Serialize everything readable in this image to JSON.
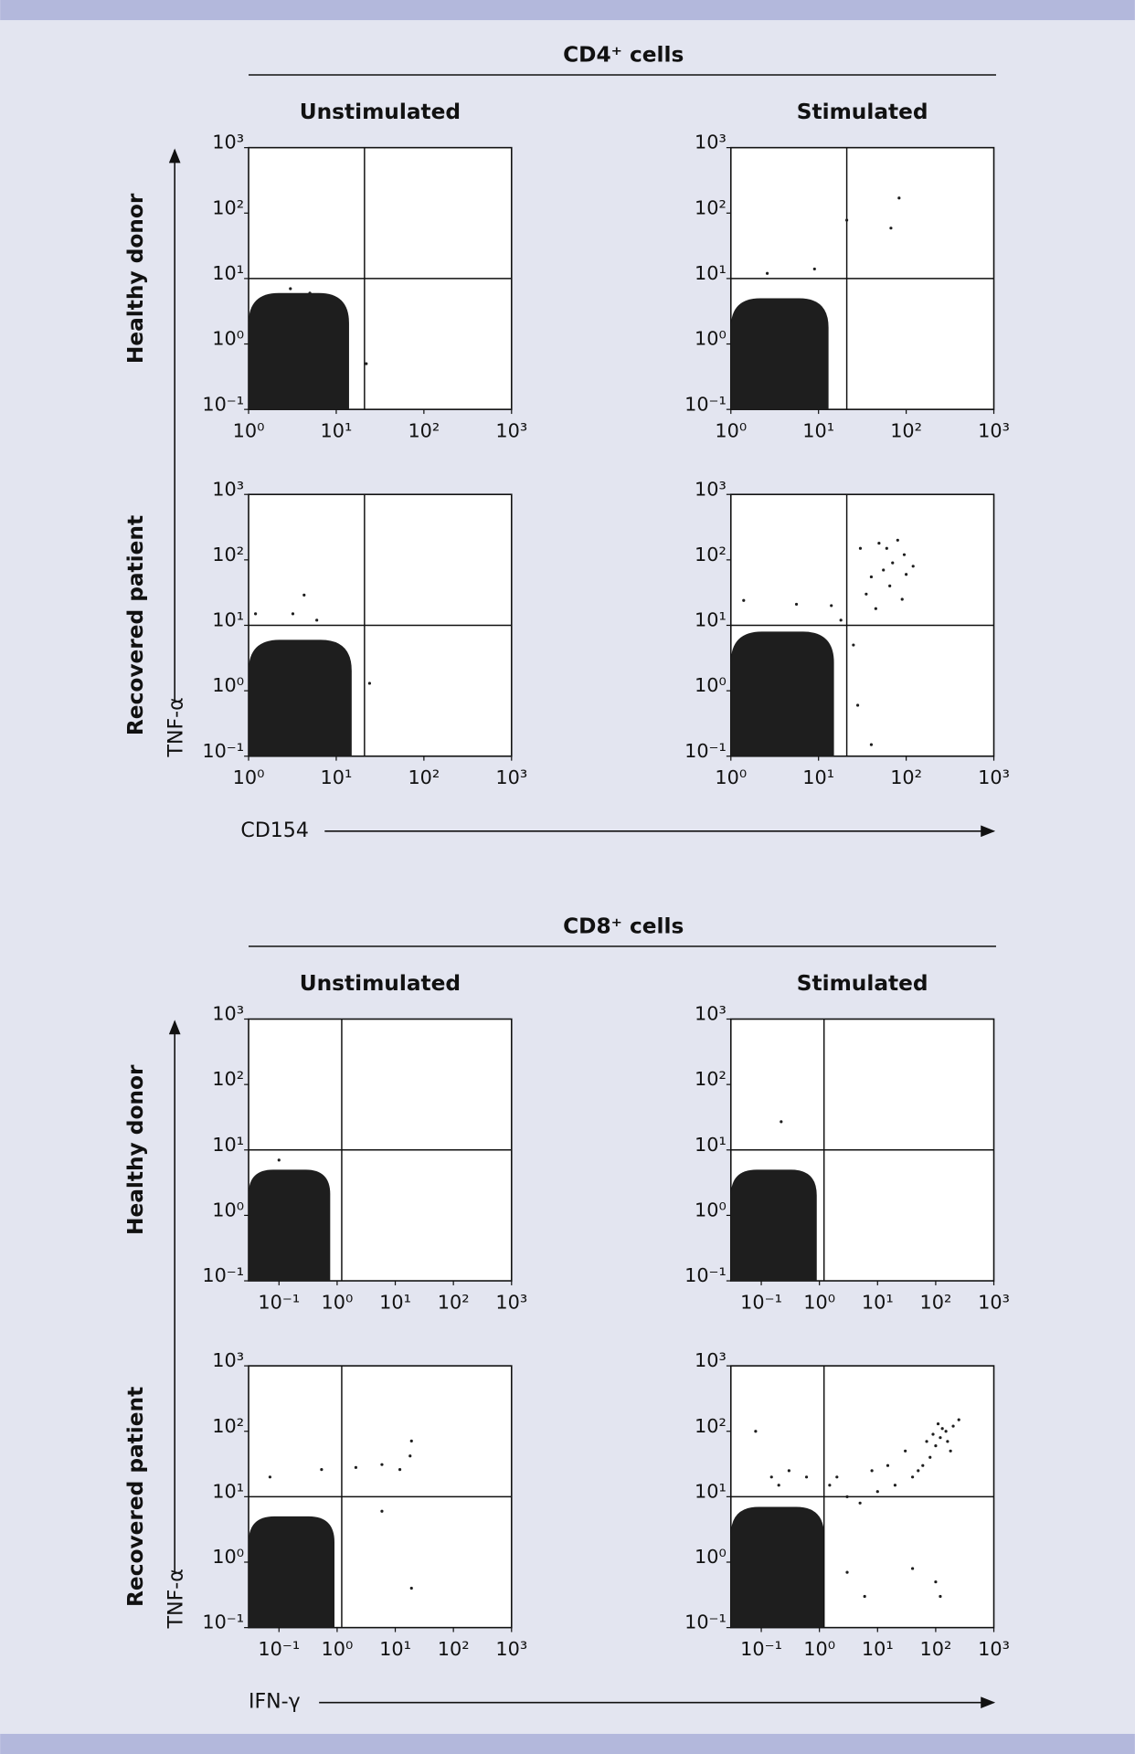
{
  "sections": [
    {
      "title": "CD4⁺ cells",
      "columns": [
        "Unstimulated",
        "Stimulated"
      ],
      "rows": [
        "Healthy donor",
        "Recovered patient"
      ],
      "y_label": "TNF-α",
      "x_label": "CD154"
    },
    {
      "title": "CD8⁺ cells",
      "columns": [
        "Unstimulated",
        "Stimulated"
      ],
      "rows": [
        "Healthy donor",
        "Recovered patient"
      ],
      "y_label": "TNF-α",
      "x_label": "IFN-γ"
    }
  ],
  "chart_data": [
    {
      "type": "scatter",
      "xscale": "log",
      "yscale": "log",
      "color": "#1e1e1e",
      "xlim": [
        1,
        1000
      ],
      "ylim": [
        0.1,
        1000
      ],
      "xticks": [
        {
          "value": 1,
          "label": "10⁰"
        },
        {
          "value": 10,
          "label": "10¹"
        },
        {
          "value": 100,
          "label": "10²"
        },
        {
          "value": 1000,
          "label": "10³"
        }
      ],
      "yticks": [
        {
          "value": 0.1,
          "label": "10⁻¹"
        },
        {
          "value": 1,
          "label": "10⁰"
        },
        {
          "value": 10,
          "label": "10¹"
        },
        {
          "value": 100,
          "label": "10²"
        },
        {
          "value": 1000,
          "label": "10³"
        }
      ],
      "gates": {
        "x": 21,
        "y": 10
      },
      "dense_region": {
        "x": [
          1,
          14
        ],
        "y": [
          0.1,
          6
        ]
      },
      "x": [
        22,
        3,
        5
      ],
      "values": [
        0.5,
        7,
        6
      ]
    },
    {
      "type": "scatter",
      "xscale": "log",
      "yscale": "log",
      "color": "#1e1e1e",
      "xlim": [
        1,
        1000
      ],
      "ylim": [
        0.1,
        1000
      ],
      "xticks": [
        {
          "value": 1,
          "label": "10⁰"
        },
        {
          "value": 10,
          "label": "10¹"
        },
        {
          "value": 100,
          "label": "10²"
        },
        {
          "value": 1000,
          "label": "10³"
        }
      ],
      "yticks": [
        {
          "value": 0.1,
          "label": "10⁻¹"
        },
        {
          "value": 1,
          "label": "10⁰"
        },
        {
          "value": 10,
          "label": "10¹"
        },
        {
          "value": 100,
          "label": "10²"
        },
        {
          "value": 1000,
          "label": "10³"
        }
      ],
      "gates": {
        "x": 21,
        "y": 10
      },
      "dense_region": {
        "x": [
          1,
          13
        ],
        "y": [
          0.1,
          5
        ]
      },
      "x": [
        21,
        67,
        83,
        9,
        2.6
      ],
      "values": [
        78,
        59,
        170,
        14,
        12
      ]
    },
    {
      "type": "scatter",
      "xscale": "log",
      "yscale": "log",
      "color": "#1e1e1e",
      "xlim": [
        1,
        1000
      ],
      "ylim": [
        0.1,
        1000
      ],
      "xticks": [
        {
          "value": 1,
          "label": "10⁰"
        },
        {
          "value": 10,
          "label": "10¹"
        },
        {
          "value": 100,
          "label": "10²"
        },
        {
          "value": 1000,
          "label": "10³"
        }
      ],
      "yticks": [
        {
          "value": 0.1,
          "label": "10⁻¹"
        },
        {
          "value": 1,
          "label": "10⁰"
        },
        {
          "value": 10,
          "label": "10¹"
        },
        {
          "value": 100,
          "label": "10²"
        },
        {
          "value": 1000,
          "label": "10³"
        }
      ],
      "gates": {
        "x": 21,
        "y": 10
      },
      "dense_region": {
        "x": [
          1,
          15
        ],
        "y": [
          0.1,
          6
        ]
      },
      "x": [
        4.3,
        1.2,
        3.2,
        24,
        6
      ],
      "values": [
        29,
        15,
        15,
        1.3,
        12
      ]
    },
    {
      "type": "scatter",
      "xscale": "log",
      "yscale": "log",
      "color": "#1e1e1e",
      "xlim": [
        1,
        1000
      ],
      "ylim": [
        0.1,
        1000
      ],
      "xticks": [
        {
          "value": 1,
          "label": "10⁰"
        },
        {
          "value": 10,
          "label": "10¹"
        },
        {
          "value": 100,
          "label": "10²"
        },
        {
          "value": 1000,
          "label": "10³"
        }
      ],
      "yticks": [
        {
          "value": 0.1,
          "label": "10⁻¹"
        },
        {
          "value": 1,
          "label": "10⁰"
        },
        {
          "value": 10,
          "label": "10¹"
        },
        {
          "value": 100,
          "label": "10²"
        },
        {
          "value": 1000,
          "label": "10³"
        }
      ],
      "gates": {
        "x": 21,
        "y": 10
      },
      "dense_region": {
        "x": [
          1,
          15
        ],
        "y": [
          0.1,
          8
        ]
      },
      "x": [
        49,
        60,
        80,
        95,
        70,
        55,
        40,
        100,
        120,
        35,
        65,
        90,
        45,
        30,
        25,
        28,
        40,
        18,
        14,
        1.4,
        5.6
      ],
      "values": [
        180,
        150,
        200,
        120,
        90,
        70,
        55,
        60,
        80,
        30,
        40,
        25,
        18,
        150,
        5,
        0.6,
        0.15,
        12,
        20,
        24,
        21
      ]
    },
    {
      "type": "scatter",
      "xscale": "log",
      "yscale": "log",
      "color": "#1e1e1e",
      "xlim": [
        0.03,
        1000
      ],
      "ylim": [
        0.1,
        1000
      ],
      "xticks": [
        {
          "value": 0.1,
          "label": "10⁻¹"
        },
        {
          "value": 1,
          "label": "10⁰"
        },
        {
          "value": 10,
          "label": "10¹"
        },
        {
          "value": 100,
          "label": "10²"
        },
        {
          "value": 1000,
          "label": "10³"
        }
      ],
      "yticks": [
        {
          "value": 0.1,
          "label": "10⁻¹"
        },
        {
          "value": 1,
          "label": "10⁰"
        },
        {
          "value": 10,
          "label": "10¹"
        },
        {
          "value": 100,
          "label": "10²"
        },
        {
          "value": 1000,
          "label": "10³"
        }
      ],
      "gates": {
        "x": 1.2,
        "y": 10
      },
      "dense_region": {
        "x": [
          0.03,
          0.76
        ],
        "y": [
          0.1,
          5
        ]
      },
      "x": [
        0.1
      ],
      "values": [
        7
      ]
    },
    {
      "type": "scatter",
      "xscale": "log",
      "yscale": "log",
      "color": "#1e1e1e",
      "xlim": [
        0.03,
        1000
      ],
      "ylim": [
        0.1,
        1000
      ],
      "xticks": [
        {
          "value": 0.1,
          "label": "10⁻¹"
        },
        {
          "value": 1,
          "label": "10⁰"
        },
        {
          "value": 10,
          "label": "10¹"
        },
        {
          "value": 100,
          "label": "10²"
        },
        {
          "value": 1000,
          "label": "10³"
        }
      ],
      "yticks": [
        {
          "value": 0.1,
          "label": "10⁻¹"
        },
        {
          "value": 1,
          "label": "10⁰"
        },
        {
          "value": 10,
          "label": "10¹"
        },
        {
          "value": 100,
          "label": "10²"
        },
        {
          "value": 1000,
          "label": "10³"
        }
      ],
      "gates": {
        "x": 1.2,
        "y": 10
      },
      "dense_region": {
        "x": [
          0.03,
          0.9
        ],
        "y": [
          0.1,
          5
        ]
      },
      "x": [
        0.22
      ],
      "values": [
        27
      ]
    },
    {
      "type": "scatter",
      "xscale": "log",
      "yscale": "log",
      "color": "#1e1e1e",
      "xlim": [
        0.03,
        1000
      ],
      "ylim": [
        0.1,
        1000
      ],
      "xticks": [
        {
          "value": 0.1,
          "label": "10⁻¹"
        },
        {
          "value": 1,
          "label": "10⁰"
        },
        {
          "value": 10,
          "label": "10¹"
        },
        {
          "value": 100,
          "label": "10²"
        },
        {
          "value": 1000,
          "label": "10³"
        }
      ],
      "yticks": [
        {
          "value": 0.1,
          "label": "10⁻¹"
        },
        {
          "value": 1,
          "label": "10⁰"
        },
        {
          "value": 10,
          "label": "10¹"
        },
        {
          "value": 100,
          "label": "10²"
        },
        {
          "value": 1000,
          "label": "10³"
        }
      ],
      "gates": {
        "x": 1.2,
        "y": 10
      },
      "dense_region": {
        "x": [
          0.03,
          0.9
        ],
        "y": [
          0.1,
          5
        ]
      },
      "x": [
        2.1,
        5.9,
        12,
        19,
        18,
        5.9,
        19,
        0.07,
        0.54
      ],
      "values": [
        28,
        31,
        26,
        71,
        42,
        6,
        0.4,
        20,
        26
      ]
    },
    {
      "type": "scatter",
      "xscale": "log",
      "yscale": "log",
      "color": "#1e1e1e",
      "xlim": [
        0.03,
        1000
      ],
      "ylim": [
        0.1,
        1000
      ],
      "xticks": [
        {
          "value": 0.1,
          "label": "10⁻¹"
        },
        {
          "value": 1,
          "label": "10⁰"
        },
        {
          "value": 10,
          "label": "10¹"
        },
        {
          "value": 100,
          "label": "10²"
        },
        {
          "value": 1000,
          "label": "10³"
        }
      ],
      "yticks": [
        {
          "value": 0.1,
          "label": "10⁻¹"
        },
        {
          "value": 1,
          "label": "10⁰"
        },
        {
          "value": 10,
          "label": "10¹"
        },
        {
          "value": 100,
          "label": "10²"
        },
        {
          "value": 1000,
          "label": "10³"
        }
      ],
      "gates": {
        "x": 1.2,
        "y": 10
      },
      "dense_region": {
        "x": [
          0.03,
          1.2
        ],
        "y": [
          0.1,
          7
        ]
      },
      "x": [
        120,
        150,
        100,
        200,
        180,
        80,
        60,
        250,
        130,
        90,
        40,
        20,
        10,
        5,
        3,
        2,
        1.5,
        30,
        50,
        8,
        15,
        0.3,
        0.6,
        0.08,
        0.5,
        100,
        120,
        40,
        3,
        6,
        0.2,
        0.15,
        70,
        110,
        160
      ],
      "values": [
        80,
        100,
        60,
        120,
        50,
        40,
        30,
        150,
        110,
        90,
        20,
        15,
        12,
        8,
        10,
        20,
        15,
        50,
        25,
        25,
        30,
        25,
        20,
        100,
        3,
        0.5,
        0.3,
        0.8,
        0.7,
        0.3,
        15,
        20,
        70,
        130,
        70
      ]
    }
  ]
}
